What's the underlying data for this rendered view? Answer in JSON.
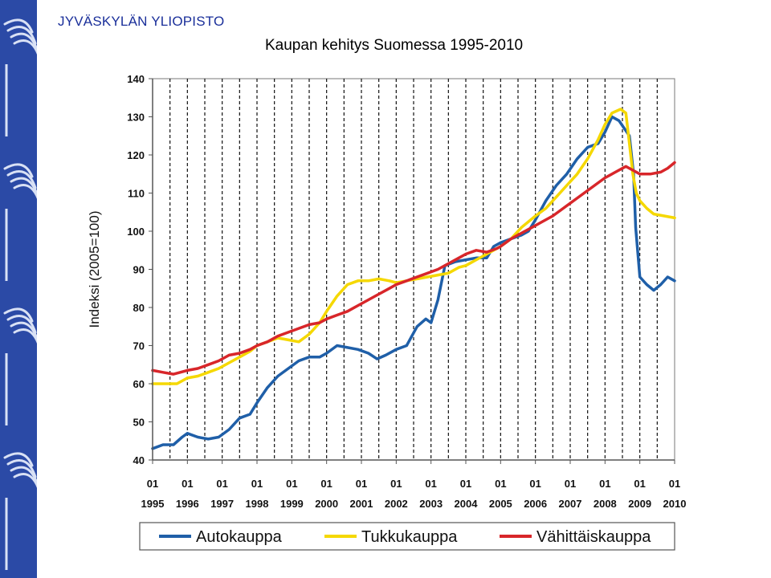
{
  "header": {
    "university": "JYVÄSKYLÄN YLIOPISTO",
    "title": "Kaupan kehitys Suomessa 1995-2010"
  },
  "colors": {
    "sidebar": "#2b4aa6",
    "sidebar_accent": "#d9e1f5"
  },
  "chart_data": {
    "type": "line",
    "title": "Kaupan kehitys Suomessa 1995-2010",
    "ylabel": "Indeksi (2005=100)",
    "xlabel": "",
    "ylim": [
      40,
      140
    ],
    "xlim": [
      1995,
      2010
    ],
    "yticks": [
      40,
      50,
      60,
      70,
      80,
      90,
      100,
      110,
      120,
      130,
      140
    ],
    "xticks": [
      {
        "x": 1995,
        "month": "01",
        "year": "1995"
      },
      {
        "x": 1996,
        "month": "01",
        "year": "1996"
      },
      {
        "x": 1997,
        "month": "01",
        "year": "1997"
      },
      {
        "x": 1998,
        "month": "01",
        "year": "1998"
      },
      {
        "x": 1999,
        "month": "01",
        "year": "1999"
      },
      {
        "x": 2000,
        "month": "01",
        "year": "2000"
      },
      {
        "x": 2001,
        "month": "01",
        "year": "2001"
      },
      {
        "x": 2002,
        "month": "01",
        "year": "2002"
      },
      {
        "x": 2003,
        "month": "01",
        "year": "2003"
      },
      {
        "x": 2004,
        "month": "01",
        "year": "2004"
      },
      {
        "x": 2005,
        "month": "01",
        "year": "2005"
      },
      {
        "x": 2006,
        "month": "01",
        "year": "2006"
      },
      {
        "x": 2007,
        "month": "01",
        "year": "2007"
      },
      {
        "x": 2008,
        "month": "01",
        "year": "2008"
      },
      {
        "x": 2009,
        "month": "01",
        "year": "2009"
      },
      {
        "x": 2010,
        "month": "01",
        "year": "2010"
      }
    ],
    "grid": "vertical dashed",
    "legend_position": "bottom",
    "series": [
      {
        "name": "Autokauppa",
        "color": "#1f5fa8",
        "points": [
          [
            1995.0,
            43
          ],
          [
            1995.3,
            44
          ],
          [
            1995.6,
            44
          ],
          [
            1995.85,
            46
          ],
          [
            1996.0,
            47
          ],
          [
            1996.3,
            46
          ],
          [
            1996.6,
            45.5
          ],
          [
            1996.9,
            46
          ],
          [
            1997.2,
            48
          ],
          [
            1997.5,
            51
          ],
          [
            1997.8,
            52
          ],
          [
            1998.0,
            55
          ],
          [
            1998.3,
            59
          ],
          [
            1998.6,
            62
          ],
          [
            1998.9,
            64
          ],
          [
            1999.2,
            66
          ],
          [
            1999.5,
            67
          ],
          [
            1999.8,
            67
          ],
          [
            2000.0,
            68
          ],
          [
            2000.3,
            70
          ],
          [
            2000.6,
            69.5
          ],
          [
            2000.9,
            69
          ],
          [
            2001.2,
            68
          ],
          [
            2001.45,
            66.5
          ],
          [
            2001.7,
            67.5
          ],
          [
            2002.0,
            69
          ],
          [
            2002.3,
            70
          ],
          [
            2002.6,
            75
          ],
          [
            2002.85,
            77
          ],
          [
            2003.0,
            76
          ],
          [
            2003.2,
            82
          ],
          [
            2003.4,
            91
          ],
          [
            2003.7,
            92
          ],
          [
            2004.0,
            92.5
          ],
          [
            2004.3,
            93
          ],
          [
            2004.6,
            93
          ],
          [
            2004.8,
            96
          ],
          [
            2005.0,
            97
          ],
          [
            2005.3,
            98
          ],
          [
            2005.6,
            99
          ],
          [
            2005.8,
            100
          ],
          [
            2006.0,
            103
          ],
          [
            2006.3,
            108
          ],
          [
            2006.6,
            112
          ],
          [
            2006.9,
            115
          ],
          [
            2007.2,
            119
          ],
          [
            2007.5,
            122
          ],
          [
            2007.8,
            123
          ],
          [
            2008.0,
            126
          ],
          [
            2008.2,
            130
          ],
          [
            2008.4,
            129
          ],
          [
            2008.7,
            125
          ],
          [
            2008.82,
            115
          ],
          [
            2008.88,
            101
          ],
          [
            2009.0,
            88
          ],
          [
            2009.2,
            86
          ],
          [
            2009.4,
            84.5
          ],
          [
            2009.6,
            86
          ],
          [
            2009.8,
            88
          ],
          [
            2010.0,
            87
          ]
        ]
      },
      {
        "name": "Tukkukauppa",
        "color": "#f5d800",
        "points": [
          [
            1995.0,
            60
          ],
          [
            1995.4,
            60
          ],
          [
            1995.7,
            60
          ],
          [
            1996.0,
            61.5
          ],
          [
            1996.3,
            62
          ],
          [
            1996.6,
            63
          ],
          [
            1996.9,
            64
          ],
          [
            1997.2,
            65.5
          ],
          [
            1997.5,
            67
          ],
          [
            1997.8,
            68.5
          ],
          [
            1998.0,
            70
          ],
          [
            1998.3,
            71
          ],
          [
            1998.6,
            72
          ],
          [
            1998.9,
            71.5
          ],
          [
            1999.2,
            71
          ],
          [
            1999.5,
            73
          ],
          [
            1999.8,
            76
          ],
          [
            2000.0,
            79
          ],
          [
            2000.3,
            83
          ],
          [
            2000.6,
            86
          ],
          [
            2000.9,
            87
          ],
          [
            2001.2,
            87
          ],
          [
            2001.5,
            87.5
          ],
          [
            2001.8,
            87
          ],
          [
            2002.0,
            86.5
          ],
          [
            2002.3,
            87
          ],
          [
            2002.6,
            87.5
          ],
          [
            2002.9,
            88
          ],
          [
            2003.2,
            88.5
          ],
          [
            2003.5,
            89
          ],
          [
            2003.8,
            90.5
          ],
          [
            2004.0,
            91
          ],
          [
            2004.3,
            92.5
          ],
          [
            2004.6,
            94
          ],
          [
            2004.9,
            95.5
          ],
          [
            2005.0,
            96
          ],
          [
            2005.3,
            98
          ],
          [
            2005.6,
            101
          ],
          [
            2006.0,
            104
          ],
          [
            2006.3,
            106
          ],
          [
            2006.6,
            109
          ],
          [
            2006.9,
            112
          ],
          [
            2007.2,
            115
          ],
          [
            2007.5,
            119
          ],
          [
            2007.8,
            124
          ],
          [
            2008.0,
            128
          ],
          [
            2008.2,
            131
          ],
          [
            2008.45,
            132
          ],
          [
            2008.6,
            131
          ],
          [
            2008.7,
            123
          ],
          [
            2008.8,
            115
          ],
          [
            2008.9,
            110
          ],
          [
            2009.0,
            108
          ],
          [
            2009.2,
            106
          ],
          [
            2009.4,
            104.5
          ],
          [
            2009.7,
            104
          ],
          [
            2010.0,
            103.5
          ]
        ]
      },
      {
        "name": "Vähittäiskauppa",
        "color": "#d8262a",
        "points": [
          [
            1995.0,
            63.5
          ],
          [
            1995.3,
            63
          ],
          [
            1995.6,
            62.5
          ],
          [
            1996.0,
            63.5
          ],
          [
            1996.3,
            64
          ],
          [
            1996.6,
            65
          ],
          [
            1996.9,
            66
          ],
          [
            1997.2,
            67.5
          ],
          [
            1997.5,
            68
          ],
          [
            1997.8,
            69
          ],
          [
            1998.0,
            70
          ],
          [
            1998.3,
            71
          ],
          [
            1998.6,
            72.5
          ],
          [
            1998.9,
            73.5
          ],
          [
            1999.2,
            74.5
          ],
          [
            1999.5,
            75.5
          ],
          [
            1999.8,
            76
          ],
          [
            2000.0,
            77
          ],
          [
            2000.3,
            78
          ],
          [
            2000.6,
            79
          ],
          [
            2000.9,
            80.5
          ],
          [
            2001.2,
            82
          ],
          [
            2001.5,
            83.5
          ],
          [
            2001.8,
            85
          ],
          [
            2002.0,
            86
          ],
          [
            2002.3,
            87
          ],
          [
            2002.6,
            88
          ],
          [
            2002.9,
            89
          ],
          [
            2003.2,
            90
          ],
          [
            2003.5,
            91.5
          ],
          [
            2003.8,
            93
          ],
          [
            2004.0,
            94
          ],
          [
            2004.3,
            95
          ],
          [
            2004.6,
            94.5
          ],
          [
            2004.9,
            95.5
          ],
          [
            2005.0,
            96
          ],
          [
            2005.3,
            98
          ],
          [
            2005.6,
            99.5
          ],
          [
            2005.9,
            101
          ],
          [
            2006.2,
            102.5
          ],
          [
            2006.5,
            104
          ],
          [
            2006.8,
            106
          ],
          [
            2007.1,
            108
          ],
          [
            2007.4,
            110
          ],
          [
            2007.7,
            112
          ],
          [
            2008.0,
            114
          ],
          [
            2008.3,
            115.5
          ],
          [
            2008.6,
            117
          ],
          [
            2008.8,
            116
          ],
          [
            2009.0,
            115
          ],
          [
            2009.3,
            115
          ],
          [
            2009.6,
            115.5
          ],
          [
            2009.8,
            116.5
          ],
          [
            2010.0,
            118
          ]
        ]
      }
    ]
  }
}
